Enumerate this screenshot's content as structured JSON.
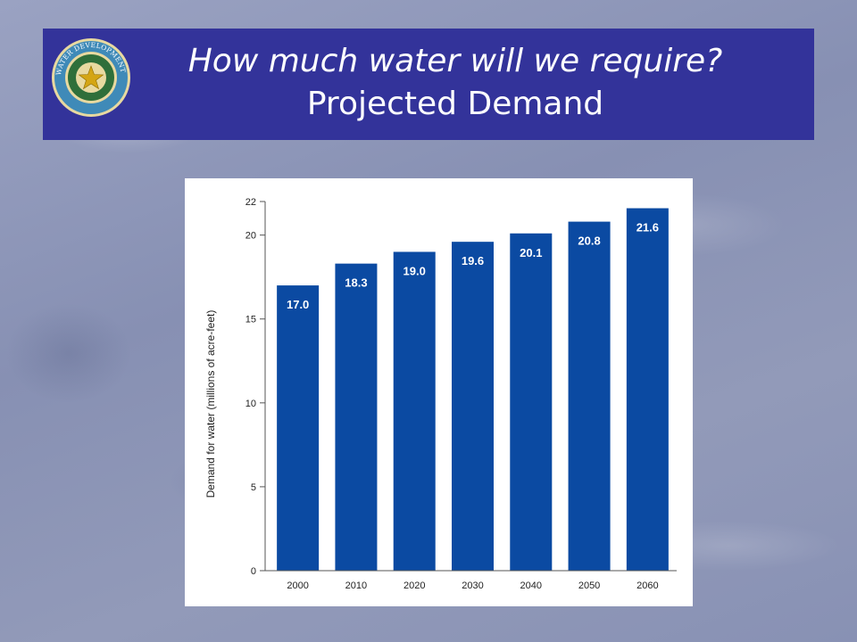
{
  "slide": {
    "title_line1": "How much water will we require?",
    "title_line2": "Projected Demand",
    "banner_color": "#33339a",
    "logo": {
      "icon": "texas-water-development-board-seal",
      "text": "TEXAS WATER DEVELOPMENT BOARD"
    }
  },
  "chart_data": {
    "type": "bar",
    "title": "",
    "categories": [
      "2000",
      "2010",
      "2020",
      "2030",
      "2040",
      "2050",
      "2060"
    ],
    "values": [
      17.0,
      18.3,
      19.0,
      19.6,
      20.1,
      20.8,
      21.6
    ],
    "value_labels": [
      "17.0",
      "18.3",
      "19.0",
      "19.6",
      "20.1",
      "20.8",
      "21.6"
    ],
    "xlabel": "",
    "ylabel": "Demand for water (millions of acre-feet)",
    "ylim": [
      0,
      22
    ],
    "yticks": [
      0,
      5,
      10,
      15,
      20,
      22
    ],
    "bar_color": "#0b4aa2",
    "grid": false,
    "legend": "none"
  }
}
